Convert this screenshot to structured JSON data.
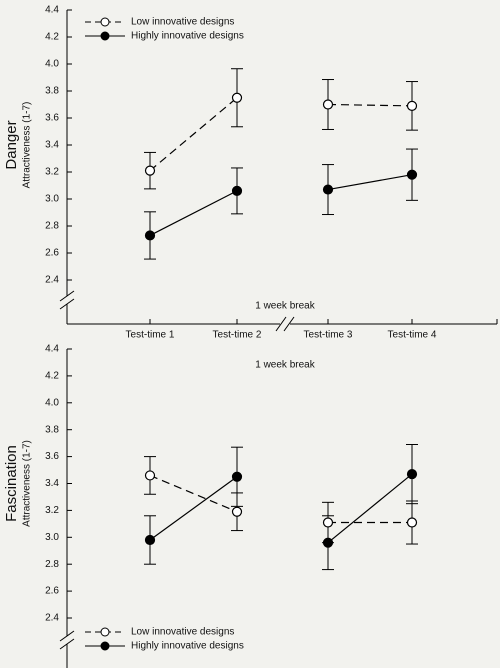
{
  "chart_data": [
    {
      "type": "errorbar-line",
      "title": "Danger",
      "ylabel": "Attractiveness (1-7)",
      "annotation": "1 week break",
      "categories": [
        "Test-time 1",
        "Test-time 2",
        "Test-time 3",
        "Test-time 4"
      ],
      "ylim": [
        2.4,
        4.4
      ],
      "yticks": [
        2.4,
        2.6,
        2.8,
        {
          "value": 3,
          "label": "3.0"
        },
        3.2,
        3.4,
        3.6,
        3.8,
        {
          "value": 4,
          "label": "4.0"
        },
        4.2,
        4.4
      ],
      "legend": "top-left",
      "series": [
        {
          "name": "Low innovative designs",
          "color": "#000000",
          "linestyle": "dashed",
          "marker": "open",
          "values": [
            3.21,
            3.75,
            3.7,
            3.69
          ],
          "errors": [
            0.135,
            0.215,
            0.185,
            0.18
          ]
        },
        {
          "name": "Highly innovative designs",
          "color": "#000000",
          "linestyle": "solid",
          "marker": "filled",
          "values": [
            2.73,
            3.06,
            3.07,
            3.18
          ],
          "errors": [
            0.175,
            0.17,
            0.185,
            0.19
          ]
        }
      ]
    },
    {
      "type": "errorbar-line",
      "title": "Fascination",
      "ylabel": "Attractiveness (1-7)",
      "annotation": "1 week break",
      "ylim": [
        2.4,
        4.4
      ],
      "yticks": [
        2.4,
        2.6,
        2.8,
        {
          "value": 3,
          "label": "3.0"
        },
        3.2,
        3.4,
        3.6,
        3.8,
        {
          "value": 4,
          "label": "4.0"
        },
        4.2,
        4.4
      ],
      "legend": "bottom-left",
      "series": [
        {
          "name": "Low innovative designs",
          "color": "#000000",
          "linestyle": "dashed",
          "marker": "open",
          "values": [
            3.46,
            3.19,
            3.11,
            3.11
          ],
          "errors": [
            0.14,
            0.14,
            0.15,
            0.16
          ]
        },
        {
          "name": "Highly innovative designs",
          "color": "#000000",
          "linestyle": "solid",
          "marker": "filled",
          "values": [
            2.98,
            3.45,
            2.96,
            3.47
          ],
          "errors": [
            0.18,
            0.22,
            0.2,
            0.22
          ]
        }
      ]
    }
  ]
}
